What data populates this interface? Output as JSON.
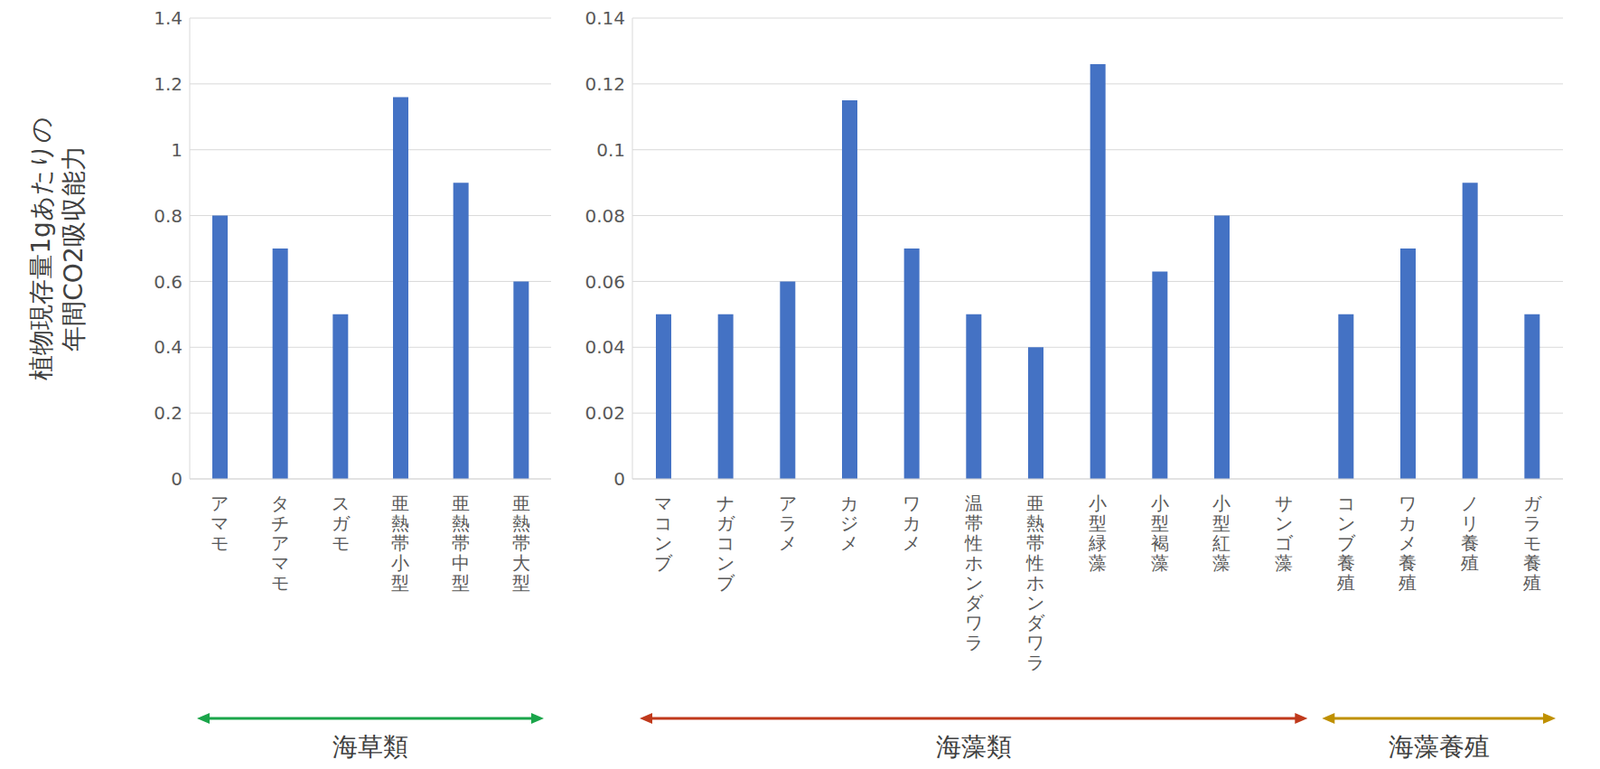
{
  "chart_data": [
    {
      "type": "bar",
      "ylabel": [
        "植物現存量1gあたりの",
        "年間CO2吸収能力"
      ],
      "xlabel": "海草類",
      "categories": [
        "アマモ",
        "タチアマモ",
        "スガモ",
        "亜熱帯小型",
        "亜熱帯中型",
        "亜熱帯大型"
      ],
      "values": [
        0.8,
        0.7,
        0.5,
        1.16,
        0.9,
        0.6
      ],
      "color": "#4472c4",
      "ylim": [
        0,
        1.4
      ],
      "yticks": [
        0,
        0.2,
        0.4,
        0.6,
        0.8,
        1,
        1.2,
        1.4
      ],
      "grid": true
    },
    {
      "type": "bar",
      "xlabel": "海藻類",
      "categories": [
        "マコンブ",
        "ナガコンブ",
        "アラメ",
        "カジメ",
        "ワカメ",
        "温帯性ホンダワラ",
        "亜熱帯性ホンダワラ",
        "小型緑藻",
        "小型褐藻",
        "小型紅藻",
        "サンゴ藻"
      ],
      "values": [
        0.05,
        0.05,
        0.06,
        0.115,
        0.07,
        0.05,
        0.04,
        0.126,
        0.063,
        0.08,
        0
      ],
      "color": "#4472c4",
      "ylim": [
        0,
        0.14
      ],
      "yticks": [
        0,
        0.02,
        0.04,
        0.06,
        0.08,
        0.1,
        0.12,
        0.14
      ],
      "grid": true
    },
    {
      "type": "bar",
      "xlabel": "海藻養殖",
      "categories": [
        "コンブ養殖",
        "ワカメ養殖",
        "ノリ養殖",
        "ガラモ養殖"
      ],
      "values": [
        0.05,
        0.07,
        0.09,
        0.05
      ],
      "color": "#4472c4"
    }
  ]
}
